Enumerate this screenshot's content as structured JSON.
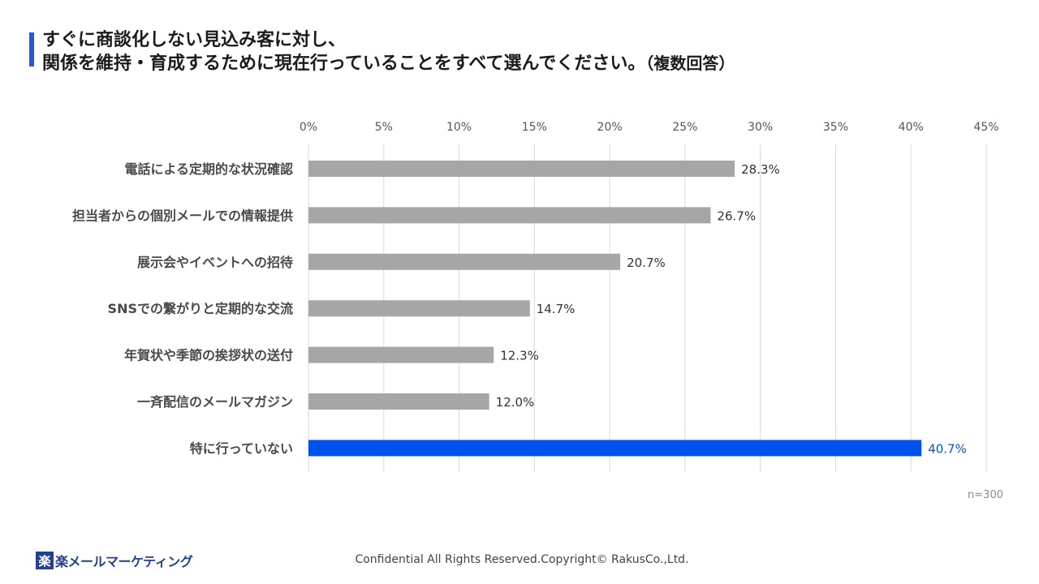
{
  "title": {
    "line1": "すぐに商談化しない見込み客に対し、",
    "line2": "関係を維持・育成するために現在行っていることをすべて選んでください。",
    "note": "（複数回答）"
  },
  "chart_data": {
    "type": "bar",
    "orientation": "horizontal",
    "categories": [
      "電話による定期的な状況確認",
      "担当者からの個別メールでの情報提供",
      "展示会やイベントへの招待",
      "SNSでの繋がりと定期的な交流",
      "年賀状や季節の挨拶状の送付",
      "一斉配信のメールマガジン",
      "特に行っていない"
    ],
    "values": [
      28.3,
      26.7,
      20.7,
      14.7,
      12.3,
      12.0,
      40.7
    ],
    "value_labels": [
      "28.3%",
      "26.7%",
      "20.7%",
      "14.7%",
      "12.3%",
      "12.0%",
      "40.7%"
    ],
    "highlight_index": 6,
    "bar_color": "#a6a6a6",
    "highlight_color": "#0050f0",
    "xlim": [
      0,
      45
    ],
    "xticks": [
      0,
      5,
      10,
      15,
      20,
      25,
      30,
      35,
      40,
      45
    ],
    "xtick_labels": [
      "0%",
      "5%",
      "10%",
      "15%",
      "20%",
      "25%",
      "30%",
      "35%",
      "40%",
      "45%"
    ],
    "grid": true
  },
  "sample_note": "n=300",
  "brand": {
    "logo_mark": "楽",
    "logo_text": "楽メールマーケティング"
  },
  "footer": "Confidential All Rights Reserved.Copyright© RakusCo.,Ltd."
}
